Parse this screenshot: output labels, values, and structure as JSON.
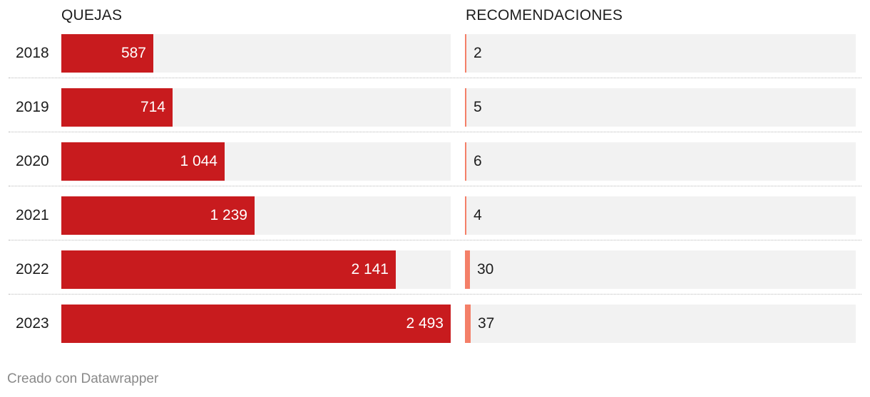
{
  "chart_data": {
    "type": "bar",
    "orientation": "horizontal",
    "categories": [
      "2018",
      "2019",
      "2020",
      "2021",
      "2022",
      "2023"
    ],
    "series": [
      {
        "name": "QUEJAS",
        "values": [
          587,
          714,
          1044,
          1239,
          2141,
          2493
        ],
        "labels": [
          "587",
          "714",
          "1 044",
          "1 239",
          "2 141",
          "2 493"
        ],
        "color": "#c81b1e",
        "xlim": [
          0,
          2493
        ]
      },
      {
        "name": "RECOMENDACIONES",
        "values": [
          2,
          5,
          6,
          4,
          30,
          37
        ],
        "labels": [
          "2",
          "5",
          "6",
          "4",
          "30",
          "37"
        ],
        "color": "#f47f68",
        "xlim": [
          0,
          2493
        ]
      }
    ],
    "grid": false,
    "legend": "none"
  },
  "footer": "Creado con Datawrapper"
}
